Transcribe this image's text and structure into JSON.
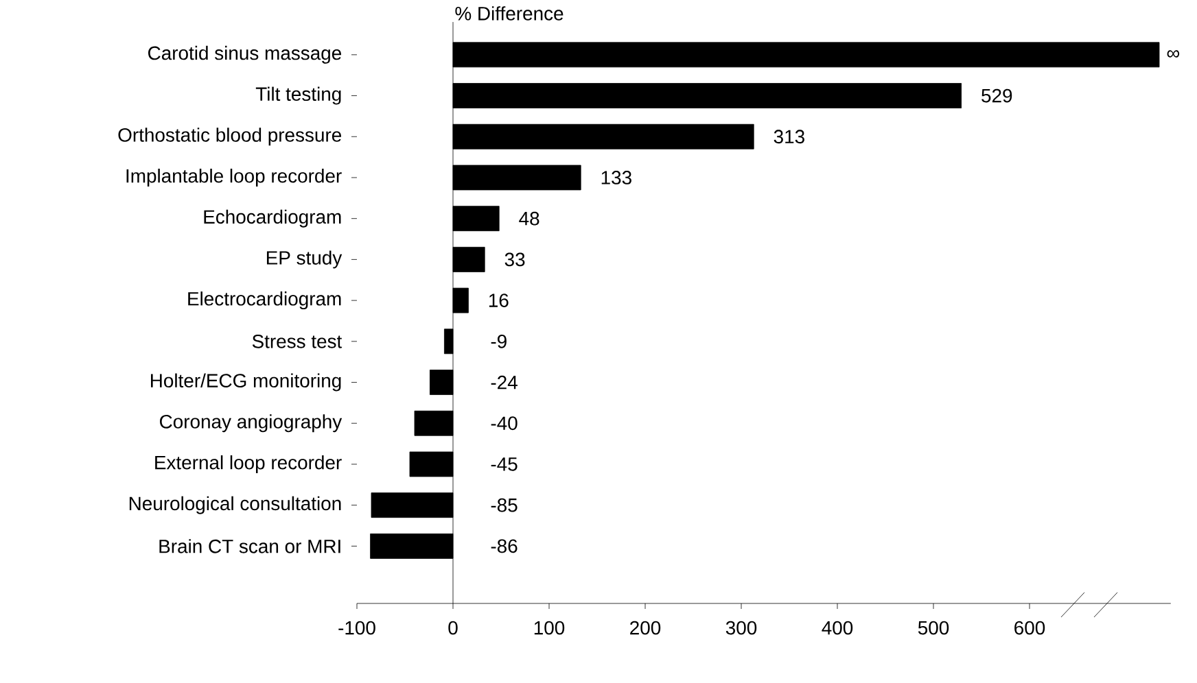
{
  "chart_data": {
    "type": "bar",
    "orientation": "horizontal",
    "xlabel": "% Difference",
    "categories": [
      "Carotid sinus massage",
      "Tilt testing",
      "Orthostatic blood pressure",
      "Implantable loop recorder",
      "Echocardiogram",
      "EP study",
      "Electrocardiogram",
      "Stress test",
      "Holter/ECG monitoring",
      "Coronay angiography",
      "External loop recorder",
      "Neurological consultation",
      "Brain CT scan or MRI"
    ],
    "values": [
      735,
      529,
      313,
      133,
      48,
      33,
      16,
      -9,
      -24,
      -40,
      -45,
      -85,
      -86
    ],
    "value_labels": [
      "∞",
      "529",
      "313",
      "133",
      "48",
      "33",
      "16",
      "-9",
      "-24",
      "-40",
      "-45",
      "-85",
      "-86"
    ],
    "color": "#000000",
    "xlim": [
      -100,
      747
    ],
    "xticks": [
      -100,
      0,
      100,
      200,
      300,
      400,
      500,
      600
    ]
  }
}
